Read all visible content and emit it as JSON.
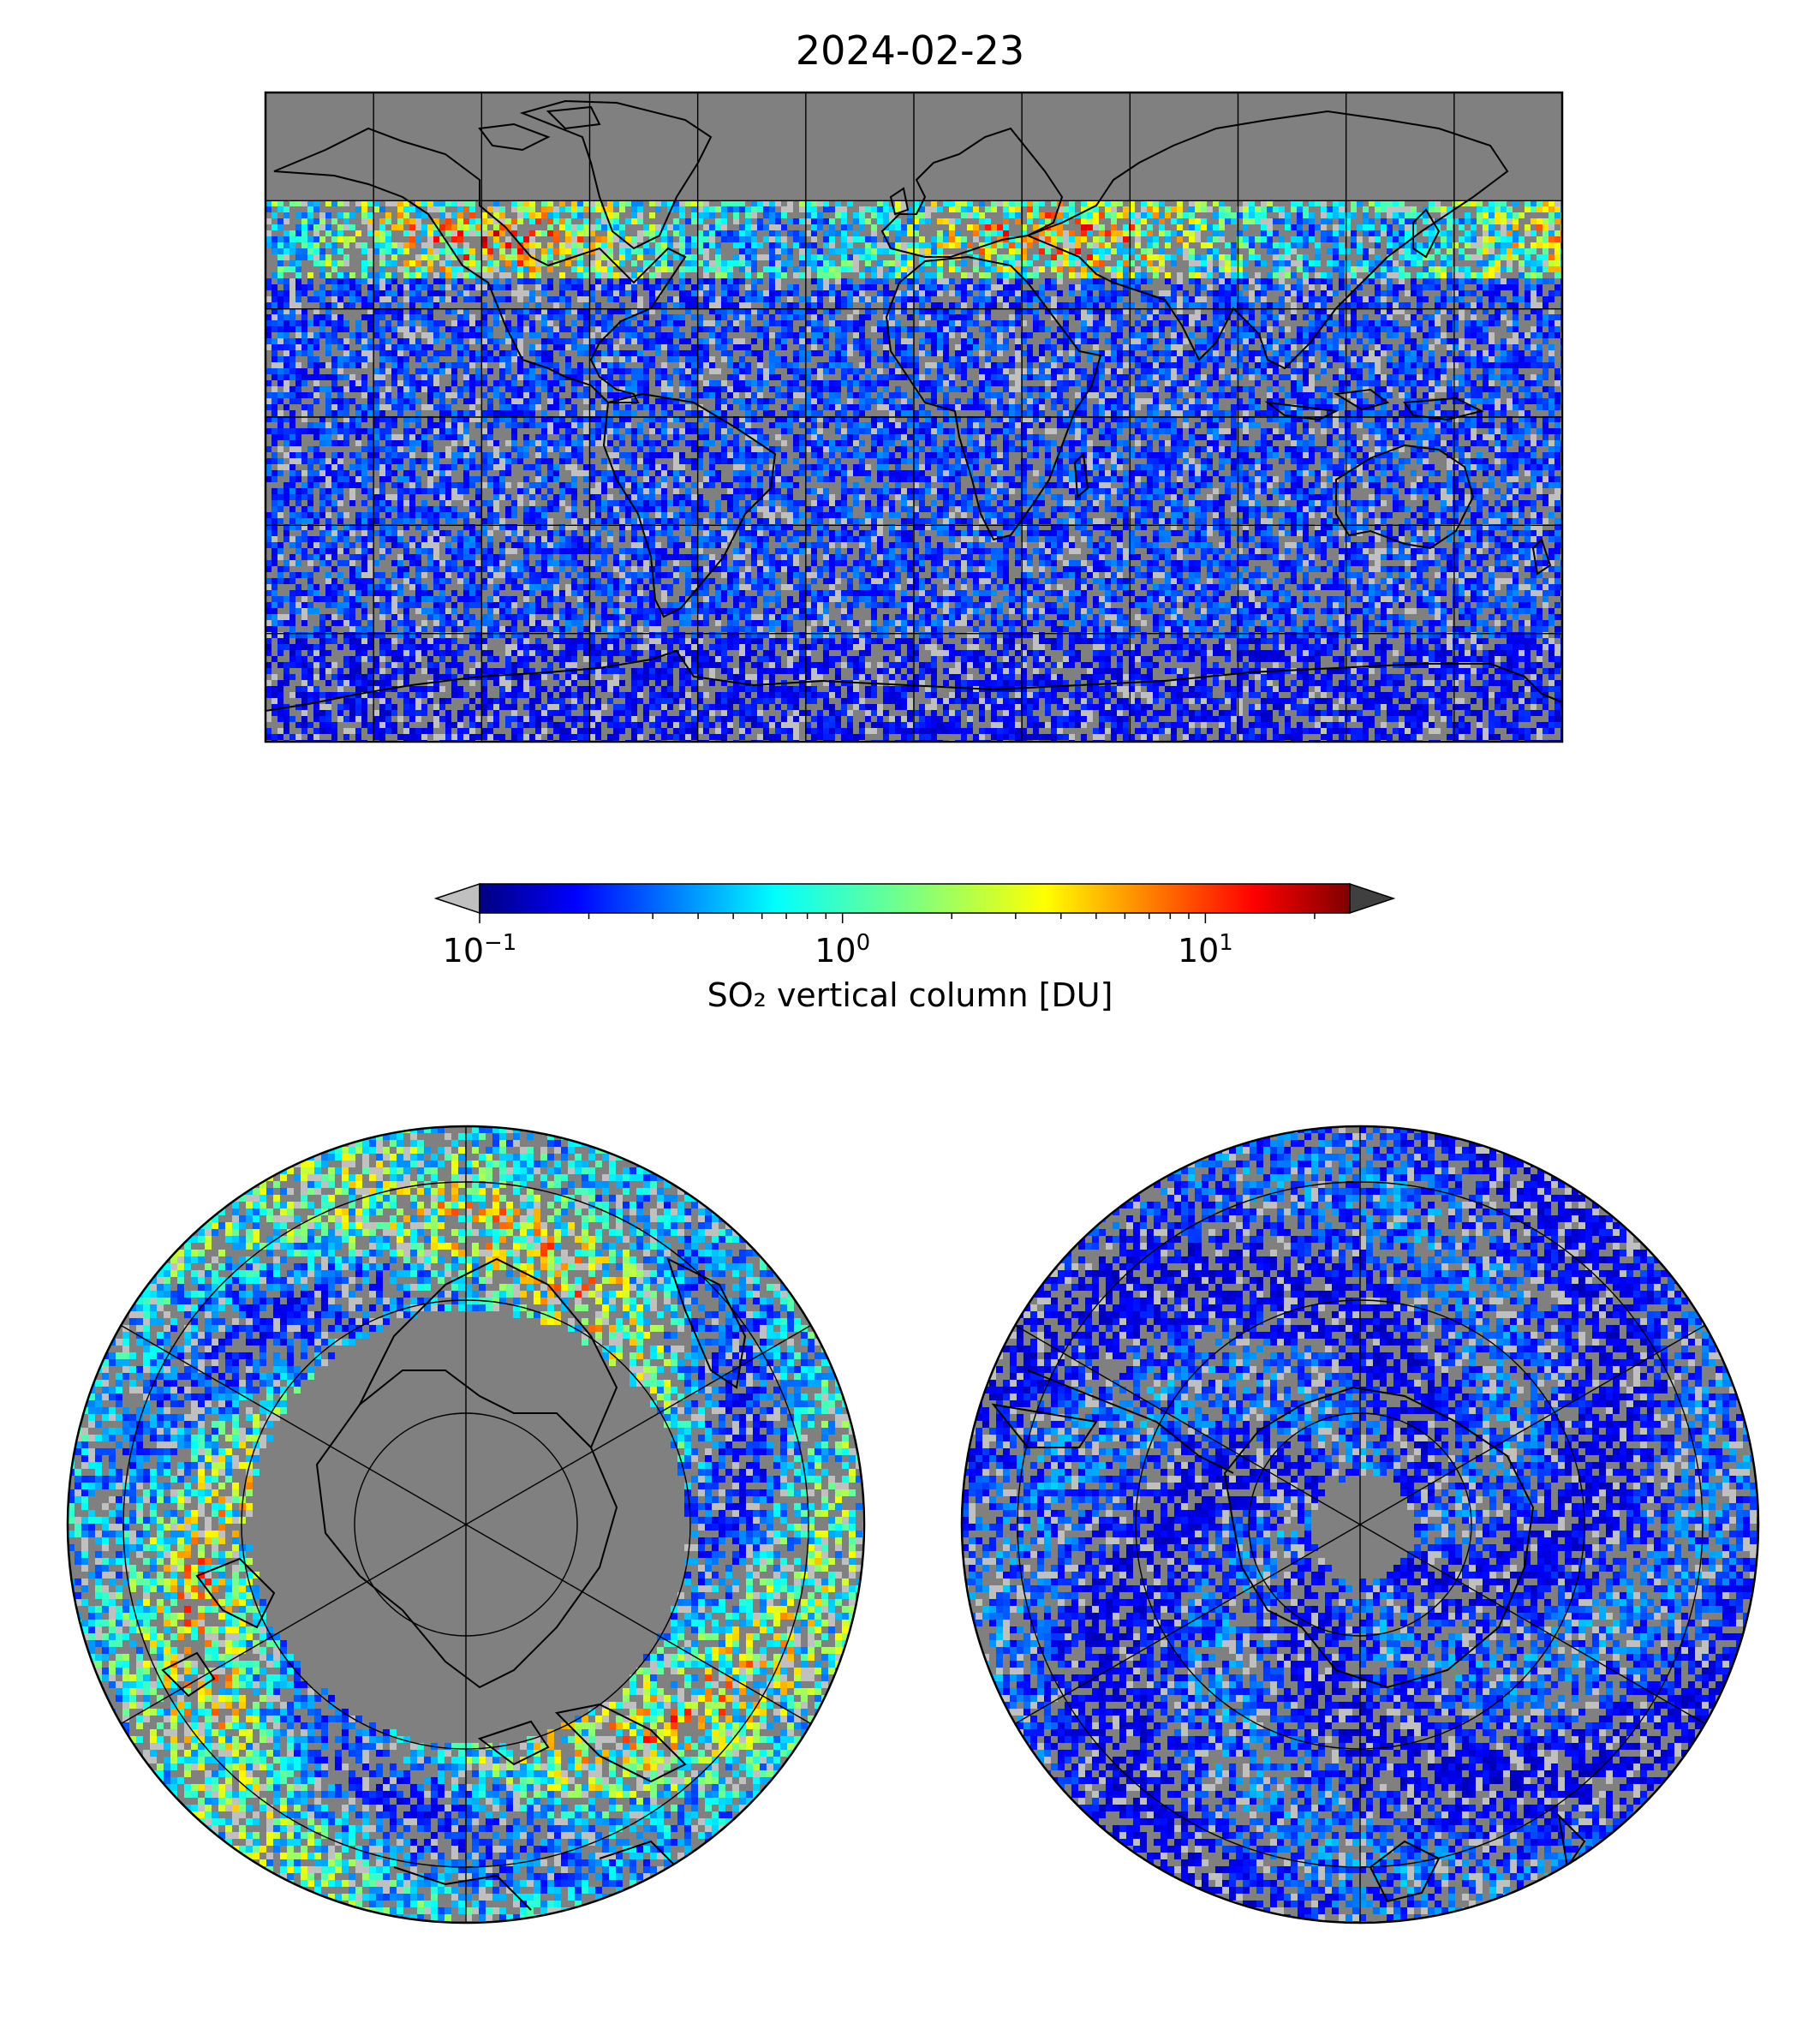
{
  "figure": {
    "title": "2024-02-23",
    "colorbar": {
      "label": "SO₂ vertical column [DU]",
      "scale": "log",
      "min": 0.1,
      "max": 25,
      "extend": "both",
      "colormap": "jet",
      "under_color": "#c0c0c0",
      "over_color": "#404040",
      "ticks": [
        {
          "value": 0.1,
          "base": "10",
          "exp": "−1"
        },
        {
          "value": 1,
          "base": "10",
          "exp": "0"
        },
        {
          "value": 10,
          "base": "10",
          "exp": "1"
        }
      ]
    },
    "panels": [
      {
        "name": "global",
        "projection": "plate-carree",
        "lon_range": [
          -180,
          180
        ],
        "lat_range": [
          -90,
          90
        ],
        "graticule_lon_step": 30,
        "graticule_lat_step": 30
      },
      {
        "name": "north-polar",
        "projection": "north-polar-stereo",
        "graticule_lat": [
          60,
          30,
          0
        ],
        "meridian_step": 60
      },
      {
        "name": "south-polar",
        "projection": "south-polar-stereo",
        "graticule_lat": [
          -60,
          -30,
          0
        ],
        "meridian_step": 60
      }
    ],
    "colors": {
      "land_missing": "#808080",
      "coastline": "#000000",
      "graticule": "#000000"
    }
  }
}
